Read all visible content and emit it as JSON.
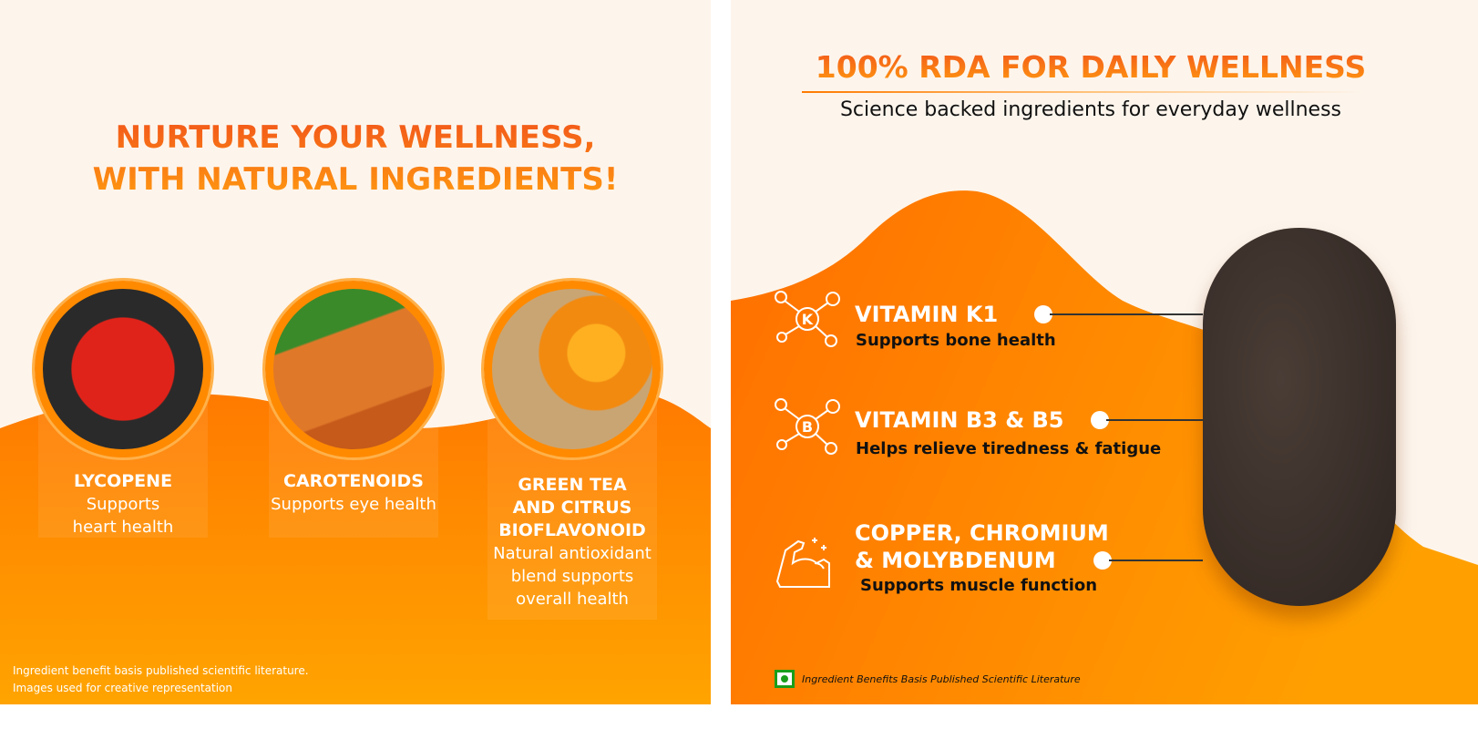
{
  "left": {
    "title_line1": "NURTURE YOUR WELLNESS,",
    "title_line2": "WITH NATURAL INGREDIENTS!",
    "ingredients": [
      {
        "name": "LYCOPENE",
        "benefit_line1": "Supports",
        "benefit_line2": "heart health",
        "image": "tomatoes"
      },
      {
        "name": "CAROTENOIDS",
        "benefit_line1": "Supports eye health",
        "image": "carrots"
      },
      {
        "name_line1": "GREEN TEA",
        "name_line2": "AND CITRUS",
        "name_line3": "BIOFLAVONOID",
        "benefit_line1": "Natural antioxidant",
        "benefit_line2": "blend supports",
        "benefit_line3": "overall health",
        "image": "oranges"
      }
    ],
    "disclaimer_line1": "Ingredient benefit basis published scientific literature.",
    "disclaimer_line2": "Images used for creative representation"
  },
  "right": {
    "title": "100% RDA FOR DAILY WELLNESS",
    "subtitle": "Science backed ingredients for everyday wellness",
    "items": [
      {
        "heading": "VITAMIN K1",
        "text": "Supports bone health",
        "icon": "molecule-k-icon",
        "icon_letter": "K"
      },
      {
        "heading": "VITAMIN B3 & B5",
        "text": "Helps relieve tiredness & fatigue",
        "icon": "molecule-b-icon",
        "icon_letter": "B"
      },
      {
        "heading_line1": "COPPER, CHROMIUM",
        "heading_line2": "& MOLYBDENUM",
        "text": "Supports muscle function",
        "icon": "flexed-arm-icon"
      }
    ],
    "disclaimer": "Ingredient Benefits Basis Published Scientific Literature",
    "veg_mark_color": "#1a9e1a"
  },
  "colors": {
    "orange": "#ff7a00",
    "amber": "#ffa400",
    "cream": "#fdf5ec",
    "tablet": "#3b302b"
  }
}
